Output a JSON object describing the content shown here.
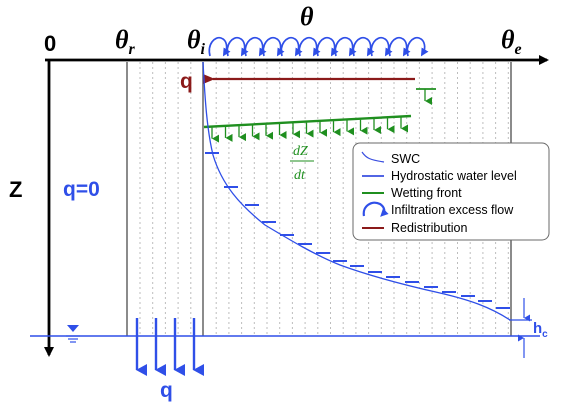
{
  "labels": {
    "origin": "0",
    "theta_r": "θ",
    "theta_r_sub": "r",
    "theta_i": "θ",
    "theta_i_sub": "i",
    "theta": "θ",
    "theta_e": "θ",
    "theta_e_sub": "e",
    "z_axis": "Z",
    "q_zero": "q=0",
    "q_redistribution": "q",
    "q_bottom": "q",
    "h_c": "h",
    "h_c_sub": "c",
    "dz": "dZ",
    "dt": "dt"
  },
  "legend": {
    "items": [
      {
        "label": "SWC",
        "symbol": "swc-curve",
        "color": "#3a4fe0"
      },
      {
        "label": "Hydrostatic water level",
        "symbol": "blue-line",
        "color": "#3a4fe0"
      },
      {
        "label": "Wetting front",
        "symbol": "green-line",
        "color": "#1f8f1f"
      },
      {
        "label": "Infiltration excess flow",
        "symbol": "curved-arrow",
        "color": "#2f4fe8"
      },
      {
        "label": "Redistribution",
        "symbol": "red-line",
        "color": "#8b1a1a"
      }
    ]
  },
  "colors": {
    "blue": "#2f4fe8",
    "green": "#1f8f1f",
    "darkred": "#8b1a1a",
    "gray": "#7a7a7a",
    "black": "#000000"
  }
}
